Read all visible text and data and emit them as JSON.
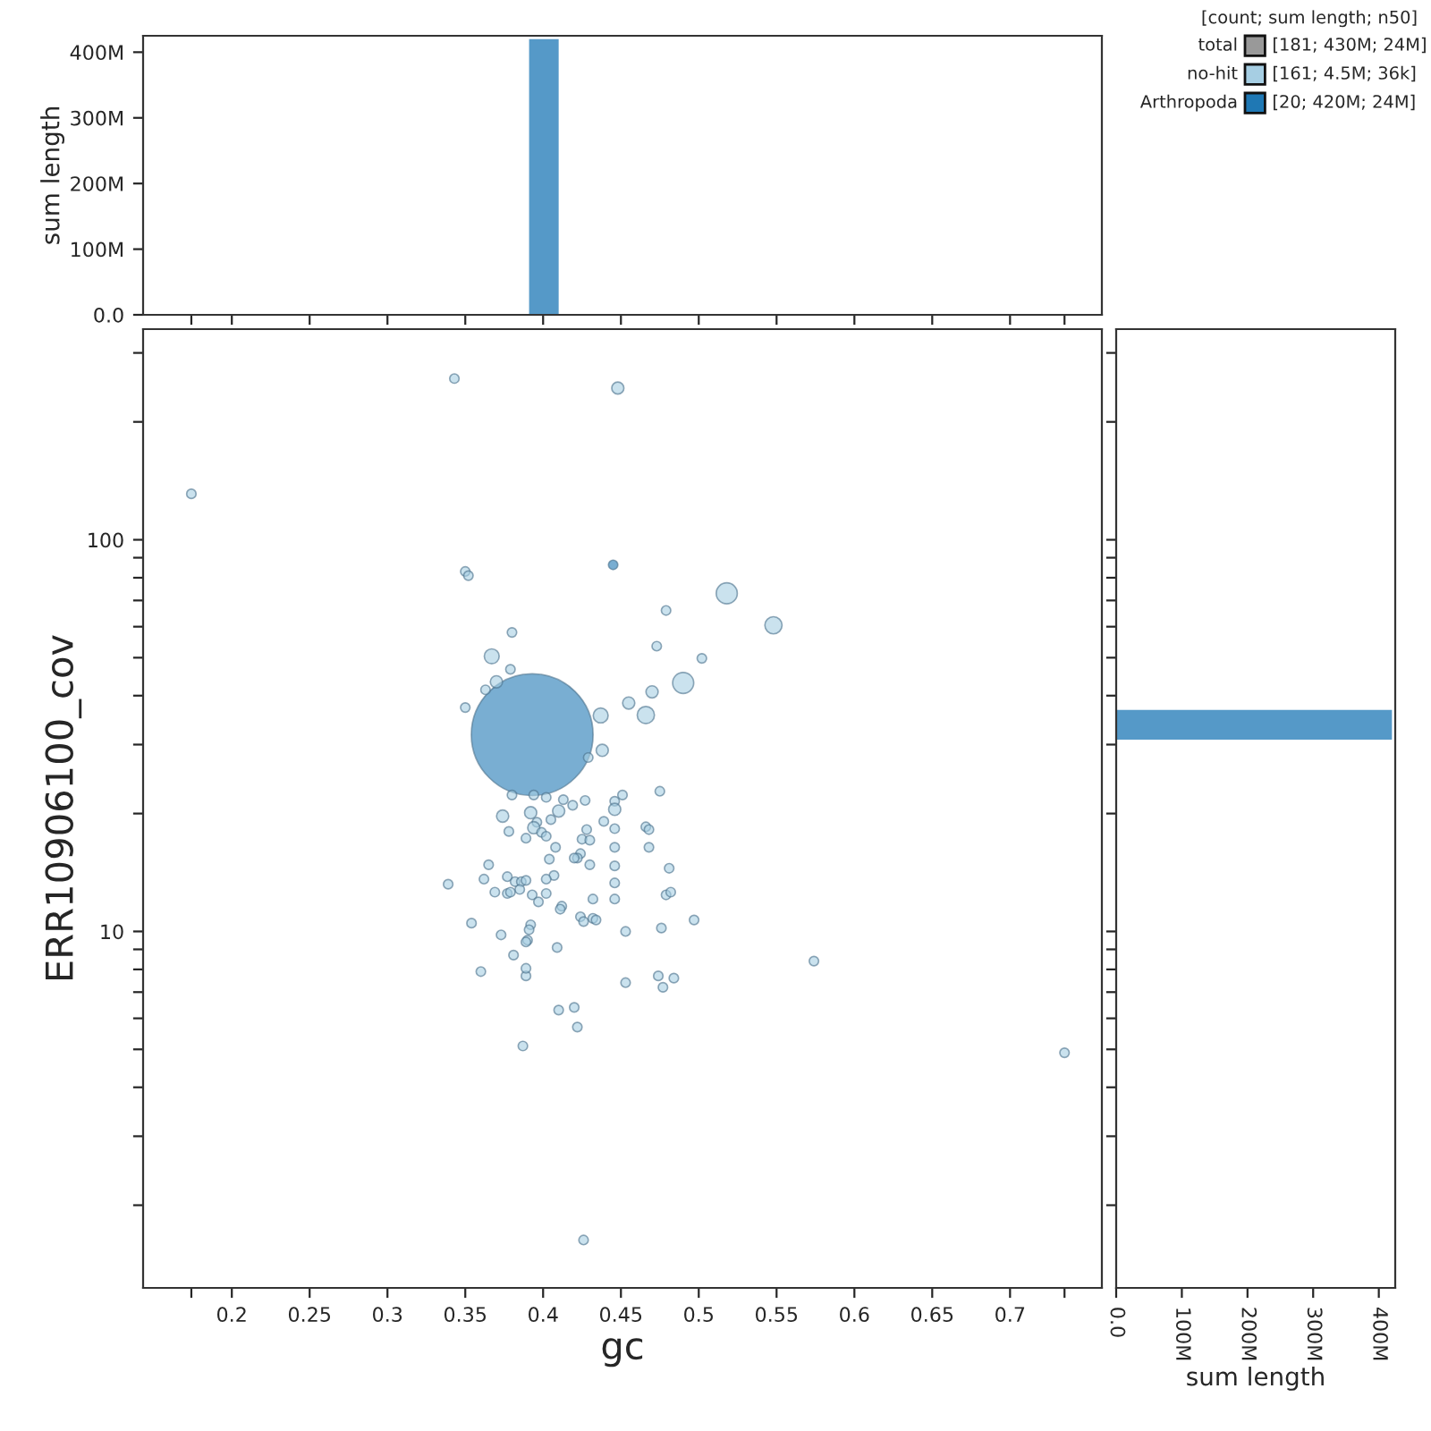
{
  "chart_data": [
    {
      "type": "histogram",
      "ylabel": "sum length",
      "bins": [
        0.391,
        0.41
      ],
      "values": [
        420000000
      ],
      "color": "#5599c8",
      "xlim": [
        0.143,
        0.759
      ],
      "xticks": [
        {
          "value": 0.174,
          "label": null
        },
        0.2,
        0.25,
        0.3,
        0.35,
        0.4,
        0.45,
        0.5,
        0.55,
        0.6,
        0.65,
        0.7,
        {
          "value": 0.735,
          "label": null
        }
      ],
      "ylim": [
        0,
        425000000
      ],
      "yticks": [
        {
          "value": 0,
          "label": "0.0"
        },
        {
          "value": 100000000,
          "label": "100M"
        },
        {
          "value": 200000000,
          "label": "200M"
        },
        {
          "value": 300000000,
          "label": "300M"
        },
        {
          "value": 400000000,
          "label": "400M"
        }
      ],
      "tick_labels": "y"
    },
    {
      "type": "bubble",
      "xlabel": "gc",
      "ylabel": "ERR10906100_cov",
      "log": true,
      "xlim": [
        0.143,
        0.759
      ],
      "xticks": [
        {
          "value": 0.174,
          "label": null
        },
        0.2,
        0.25,
        0.3,
        0.35,
        0.4,
        0.45,
        0.5,
        0.55,
        0.6,
        0.65,
        0.7,
        {
          "value": 0.735,
          "label": null
        }
      ],
      "ylim": [
        1.23,
        345
      ],
      "yticks": [
        {
          "value": 2,
          "label": null
        },
        {
          "value": 3,
          "label": null
        },
        {
          "value": 4,
          "label": null
        },
        {
          "value": 5,
          "label": null
        },
        {
          "value": 6,
          "label": null
        },
        {
          "value": 7,
          "label": null
        },
        {
          "value": 8,
          "label": null
        },
        {
          "value": 9,
          "label": null
        },
        10,
        {
          "value": 20,
          "label": null
        },
        {
          "value": 30,
          "label": null
        },
        {
          "value": 40,
          "label": null
        },
        {
          "value": 50,
          "label": null
        },
        {
          "value": 60,
          "label": null
        },
        {
          "value": 70,
          "label": null
        },
        {
          "value": 80,
          "label": null
        },
        {
          "value": 90,
          "label": null
        },
        100,
        {
          "value": 200,
          "label": null
        },
        {
          "value": 300,
          "label": null
        }
      ],
      "legend": "top right",
      "legend_title": "[count; sum length; n50]",
      "annotations": [
        "[181; 430M; 24M]",
        "[161; 4.5M; 36k]",
        "[20; 420M; 24M]"
      ],
      "series": [
        {
          "name": "total",
          "color": "#999999"
        },
        {
          "name": "no-hit",
          "color": "#a6cee3",
          "x": [
            0.343,
            0.448,
            0.174,
            0.35,
            0.352,
            0.518,
            0.479,
            0.548,
            0.38,
            0.473,
            0.502,
            0.367,
            0.379,
            0.49,
            0.37,
            0.363,
            0.47,
            0.35,
            0.455,
            0.437,
            0.466,
            0.438,
            0.429,
            0.475,
            0.451,
            0.446,
            0.446,
            0.402,
            0.394,
            0.413,
            0.427,
            0.419,
            0.41,
            0.392,
            0.38,
            0.374,
            0.439,
            0.396,
            0.405,
            0.378,
            0.466,
            0.468,
            0.446,
            0.394,
            0.399,
            0.428,
            0.389,
            0.402,
            0.425,
            0.43,
            0.408,
            0.446,
            0.468,
            0.424,
            0.422,
            0.404,
            0.42,
            0.365,
            0.43,
            0.446,
            0.481,
            0.377,
            0.407,
            0.362,
            0.382,
            0.386,
            0.389,
            0.402,
            0.339,
            0.446,
            0.369,
            0.385,
            0.377,
            0.379,
            0.402,
            0.393,
            0.479,
            0.482,
            0.432,
            0.397,
            0.446,
            0.412,
            0.411,
            0.424,
            0.426,
            0.432,
            0.434,
            0.497,
            0.354,
            0.392,
            0.476,
            0.391,
            0.453,
            0.373,
            0.39,
            0.389,
            0.409,
            0.381,
            0.574,
            0.36,
            0.389,
            0.474,
            0.389,
            0.453,
            0.477,
            0.484,
            0.41,
            0.42,
            0.422,
            0.387,
            0.735,
            0.426
          ],
          "values": [
            258,
            244,
            131,
            83,
            81,
            73,
            66,
            60.5,
            58,
            53.5,
            49.8,
            50.4,
            46.7,
            43.1,
            43.4,
            41.4,
            40.9,
            37.3,
            38.3,
            35.6,
            35.7,
            29.0,
            27.8,
            22.8,
            22.3,
            21.5,
            20.5,
            22.0,
            22.3,
            21.7,
            21.6,
            21.0,
            20.3,
            20.1,
            22.3,
            19.7,
            19.1,
            19.0,
            19.3,
            18.0,
            18.5,
            18.2,
            18.3,
            18.4,
            17.9,
            18.2,
            17.3,
            17.5,
            17.2,
            17.1,
            16.4,
            16.4,
            16.4,
            15.8,
            15.4,
            15.3,
            15.4,
            14.8,
            14.8,
            14.7,
            14.5,
            13.8,
            13.9,
            13.6,
            13.4,
            13.4,
            13.5,
            13.6,
            13.2,
            13.3,
            12.6,
            12.8,
            12.5,
            12.6,
            12.5,
            12.4,
            12.4,
            12.6,
            12.1,
            11.9,
            12.1,
            11.6,
            11.4,
            10.9,
            10.6,
            10.8,
            10.7,
            10.7,
            10.5,
            10.4,
            10.2,
            10.1,
            10.0,
            9.8,
            9.5,
            9.4,
            9.1,
            8.7,
            8.4,
            7.9,
            7.7,
            7.7,
            8.05,
            7.4,
            7.2,
            7.6,
            6.3,
            6.4,
            5.7,
            5.1,
            4.9,
            1.63
          ],
          "sizes": [
            0.006,
            0.01,
            0.006,
            0.006,
            0.006,
            0.03,
            0.006,
            0.02,
            0.006,
            0.006,
            0.006,
            0.015,
            0.006,
            0.03,
            0.01,
            0.006,
            0.01,
            0.006,
            0.01,
            0.015,
            0.02,
            0.01,
            0.006,
            0.006,
            0.006,
            0.006,
            0.01,
            0.006,
            0.006,
            0.006,
            0.006,
            0.006,
            0.01,
            0.01,
            0.006,
            0.01,
            0.006,
            0.006,
            0.006,
            0.006,
            0.006,
            0.006,
            0.006,
            0.01,
            0.006,
            0.006,
            0.006,
            0.006,
            0.006,
            0.006,
            0.006,
            0.006,
            0.006,
            0.006,
            0.006,
            0.006,
            0.006,
            0.006,
            0.006,
            0.006,
            0.006,
            0.006,
            0.006,
            0.006,
            0.006,
            0.006,
            0.006,
            0.006,
            0.006,
            0.006,
            0.006,
            0.006,
            0.006,
            0.006,
            0.006,
            0.006,
            0.006,
            0.006,
            0.006,
            0.006,
            0.006,
            0.006,
            0.006,
            0.006,
            0.006,
            0.006,
            0.006,
            0.006,
            0.006,
            0.006,
            0.006,
            0.006,
            0.006,
            0.006,
            0.006,
            0.006,
            0.006,
            0.006,
            0.006,
            0.006,
            0.006,
            0.006,
            0.006,
            0.006,
            0.006,
            0.006,
            0.006,
            0.006,
            0.006,
            0.006,
            0.006,
            0.006
          ]
        },
        {
          "name": "Arthropoda",
          "color": "#1f78b4",
          "x": [
            0.393,
            0.445
          ],
          "values": [
            31.8,
            86.3
          ],
          "sizes": [
            1,
            0.006
          ]
        }
      ]
    },
    {
      "type": "histogram",
      "orientation": "horizontal",
      "xlabel": "sum length",
      "log": "y",
      "bins": [
        30.9,
        36.8
      ],
      "values": [
        420000000
      ],
      "color": "#5599c8",
      "ylim": [
        1.23,
        345
      ],
      "yticks": [
        {
          "value": 2,
          "label": null
        },
        {
          "value": 3,
          "label": null
        },
        {
          "value": 4,
          "label": null
        },
        {
          "value": 5,
          "label": null
        },
        {
          "value": 6,
          "label": null
        },
        {
          "value": 7,
          "label": null
        },
        {
          "value": 8,
          "label": null
        },
        {
          "value": 9,
          "label": null
        },
        {
          "value": 10,
          "label": null
        },
        {
          "value": 20,
          "label": null
        },
        {
          "value": 30,
          "label": null
        },
        {
          "value": 40,
          "label": null
        },
        {
          "value": 50,
          "label": null
        },
        {
          "value": 60,
          "label": null
        },
        {
          "value": 70,
          "label": null
        },
        {
          "value": 80,
          "label": null
        },
        {
          "value": 90,
          "label": null
        },
        {
          "value": 100,
          "label": null
        },
        {
          "value": 200,
          "label": null
        },
        {
          "value": 300,
          "label": null
        }
      ],
      "xlim": [
        0,
        425000000
      ],
      "xticks": [
        {
          "value": 0,
          "label": "0.0"
        },
        {
          "value": 100000000,
          "label": "100M"
        },
        {
          "value": 200000000,
          "label": "200M"
        },
        {
          "value": 300000000,
          "label": "300M"
        },
        {
          "value": 400000000,
          "label": "400M"
        }
      ],
      "tick_labels": "x"
    }
  ]
}
